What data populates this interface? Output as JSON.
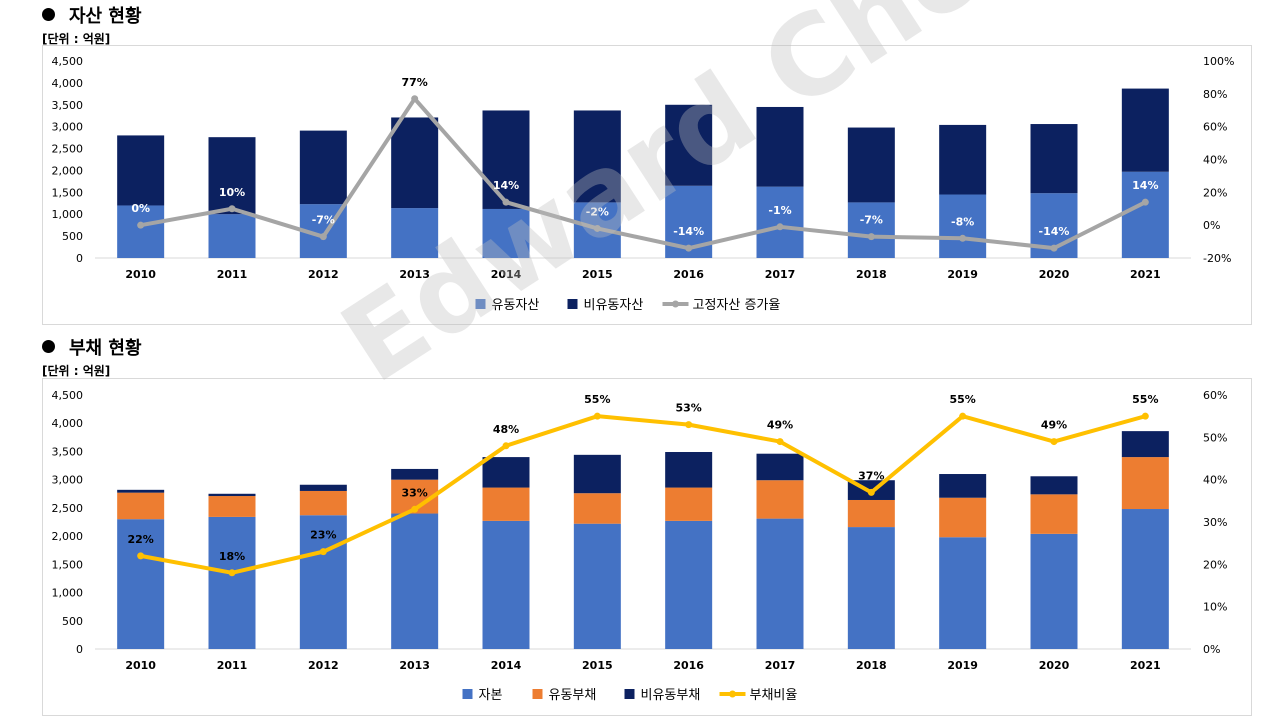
{
  "watermark": "Edward Choi",
  "sections": [
    {
      "title": "자산 현황",
      "unit": "[단위 : 억원]"
    },
    {
      "title": "부채 현황",
      "unit": "[단위 : 억원]"
    }
  ],
  "colors": {
    "blue": "#4472c4",
    "navy": "#0c2160",
    "orange": "#ed7d31",
    "gray": "#a5a5a5",
    "gold": "#ffc000"
  },
  "chart_data": [
    {
      "type": "bar",
      "stacked": true,
      "categories": [
        "2010",
        "2011",
        "2012",
        "2013",
        "2014",
        "2015",
        "2016",
        "2017",
        "2018",
        "2019",
        "2020",
        "2021"
      ],
      "ylim": [
        0,
        4500
      ],
      "yticks": [
        "0",
        "500",
        "1,000",
        "1,500",
        "2,000",
        "2,500",
        "3,000",
        "3,500",
        "4,000",
        "4,500"
      ],
      "y2lim": [
        -20,
        100
      ],
      "y2ticks": [
        "-20%",
        "0%",
        "20%",
        "40%",
        "60%",
        "80%",
        "100%"
      ],
      "series": [
        {
          "name": "유동자산",
          "type": "bar",
          "color": "#4472c4",
          "values": [
            1200,
            1000,
            1230,
            1140,
            1120,
            1270,
            1650,
            1630,
            1270,
            1450,
            1480,
            1970
          ]
        },
        {
          "name": "비유동자산",
          "type": "bar",
          "color": "#0c2160",
          "values": [
            1600,
            1760,
            1680,
            2070,
            2250,
            2100,
            1850,
            1820,
            1710,
            1590,
            1580,
            1900
          ]
        },
        {
          "name": "고정자산 증가율",
          "type": "line",
          "axis": "right",
          "color": "#a5a5a5",
          "values": [
            0,
            10,
            -7,
            77,
            14,
            -2,
            -14,
            -1,
            -7,
            -8,
            -14,
            14
          ],
          "labels": [
            "0%",
            "10%",
            "-7%",
            "77%",
            "14%",
            "-2%",
            "-14%",
            "-1%",
            "-7%",
            "-8%",
            "-14%",
            "14%"
          ]
        }
      ],
      "legend": "bottom-center"
    },
    {
      "type": "bar",
      "stacked": true,
      "categories": [
        "2010",
        "2011",
        "2012",
        "2013",
        "2014",
        "2015",
        "2016",
        "2017",
        "2018",
        "2019",
        "2020",
        "2021"
      ],
      "ylim": [
        0,
        4500
      ],
      "yticks": [
        "0",
        "500",
        "1,000",
        "1,500",
        "2,000",
        "2,500",
        "3,000",
        "3,500",
        "4,000",
        "4,500"
      ],
      "y2lim": [
        0,
        60
      ],
      "y2ticks": [
        "0%",
        "10%",
        "20%",
        "30%",
        "40%",
        "50%",
        "60%"
      ],
      "series": [
        {
          "name": "자본",
          "type": "bar",
          "color": "#4472c4",
          "values": [
            2300,
            2340,
            2370,
            2400,
            2270,
            2220,
            2270,
            2310,
            2160,
            1980,
            2040,
            2480
          ]
        },
        {
          "name": "유동부채",
          "type": "bar",
          "color": "#ed7d31",
          "values": [
            470,
            370,
            430,
            600,
            590,
            540,
            590,
            680,
            480,
            700,
            700,
            920
          ]
        },
        {
          "name": "비유동부채",
          "type": "bar",
          "color": "#0c2160",
          "values": [
            50,
            40,
            110,
            190,
            540,
            680,
            630,
            470,
            350,
            420,
            320,
            460
          ]
        },
        {
          "name": "부채비율",
          "type": "line",
          "axis": "right",
          "color": "#ffc000",
          "values": [
            22,
            18,
            23,
            33,
            48,
            55,
            53,
            49,
            37,
            55,
            49,
            55
          ],
          "labels": [
            "22%",
            "18%",
            "23%",
            "33%",
            "48%",
            "55%",
            "53%",
            "49%",
            "37%",
            "55%",
            "49%",
            "55%"
          ]
        }
      ],
      "legend": "bottom-center"
    }
  ]
}
